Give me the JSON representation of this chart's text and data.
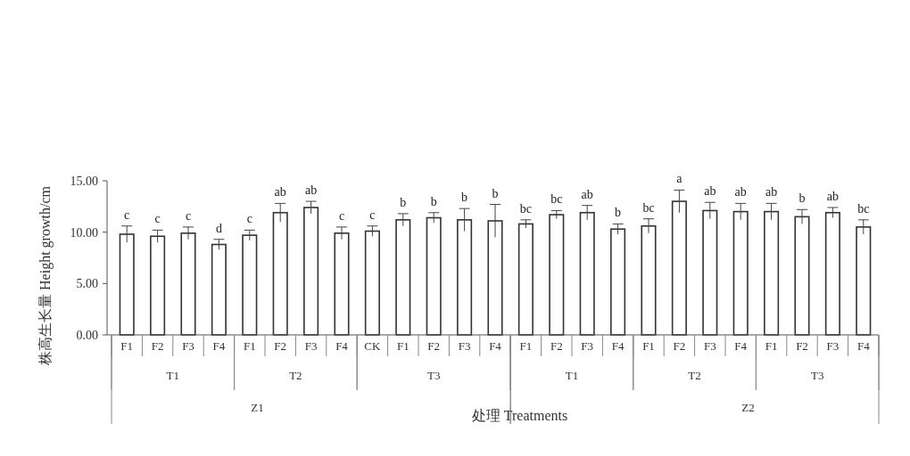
{
  "chart_data": {
    "type": "bar",
    "xlabel": "处理 Treatments",
    "ylabel": "株高生长量 Height growth/cm",
    "categories": [
      "F1",
      "F2",
      "F3",
      "F4",
      "F1",
      "F2",
      "F3",
      "F4",
      "CK",
      "F1",
      "F2",
      "F3",
      "F4",
      "F1",
      "F2",
      "F3",
      "F4",
      "F1",
      "F2",
      "F3",
      "F4",
      "F1",
      "F2",
      "F3",
      "F4"
    ],
    "values": [
      9.8,
      9.6,
      9.9,
      8.8,
      9.7,
      11.9,
      12.4,
      9.9,
      10.1,
      11.2,
      11.4,
      11.2,
      11.1,
      10.8,
      11.7,
      11.9,
      10.3,
      10.6,
      13.0,
      12.1,
      12.0,
      12.0,
      11.5,
      11.9,
      10.5
    ],
    "errors": [
      0.8,
      0.6,
      0.6,
      0.5,
      0.5,
      0.9,
      0.6,
      0.6,
      0.5,
      0.6,
      0.5,
      1.1,
      1.6,
      0.4,
      0.4,
      0.7,
      0.5,
      0.7,
      1.1,
      0.8,
      0.8,
      0.8,
      0.7,
      0.5,
      0.7
    ],
    "value_labels": [
      "c",
      "c",
      "c",
      "d",
      "c",
      "ab",
      "ab",
      "c",
      "c",
      "b",
      "b",
      "b",
      "b",
      "bc",
      "bc",
      "ab",
      "b",
      "bc",
      "a",
      "ab",
      "ab",
      "ab",
      "b",
      "ab",
      "bc"
    ],
    "color": "#ffffff",
    "ylim": [
      0,
      15
    ],
    "yticks": [
      {
        "value": 0,
        "label": "0.00"
      },
      {
        "value": 5,
        "label": "5.00"
      },
      {
        "value": 10,
        "label": "10.00"
      },
      {
        "value": 15,
        "label": "15.00"
      }
    ],
    "annotations": [
      "T1",
      "T2",
      "T3",
      "T1",
      "T2",
      "T3",
      "Z1",
      "Z2"
    ],
    "grid": false
  }
}
